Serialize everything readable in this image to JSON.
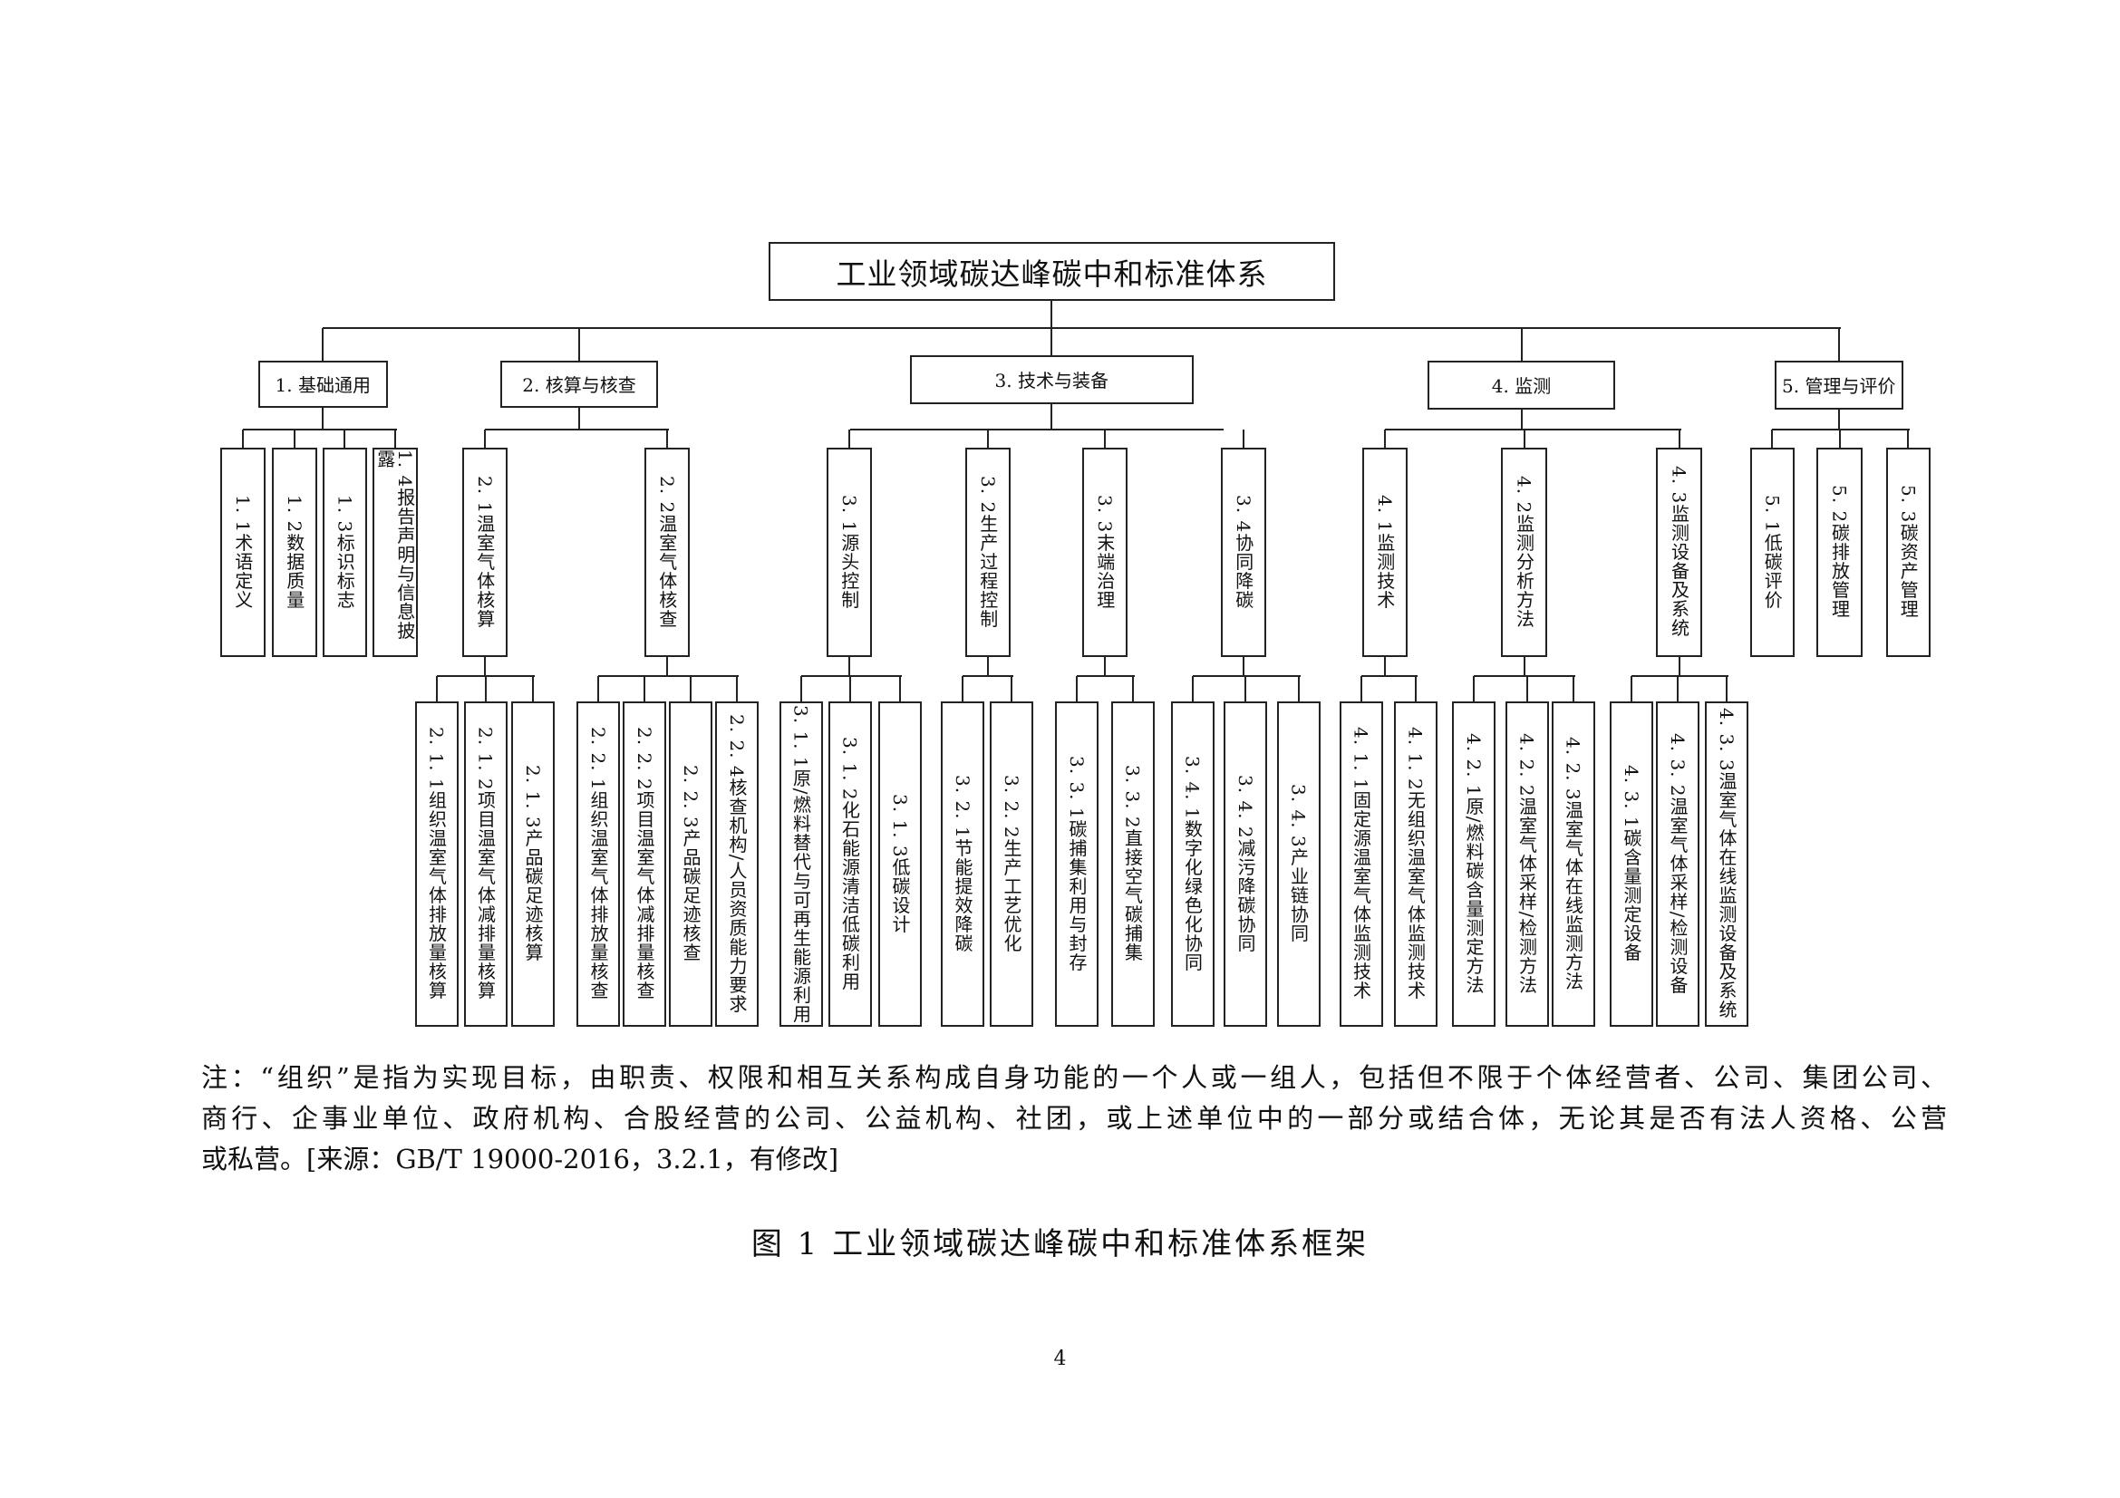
{
  "title": "工业领域碳达峰碳中和标准体系",
  "tree": [
    {
      "label": "1. 基础通用",
      "children": [
        {
          "label": "1. 1术语定义"
        },
        {
          "label": "1. 2数据质量"
        },
        {
          "label": "1. 3标识标志"
        },
        {
          "label": "1. 4报告声明与信息披露"
        }
      ]
    },
    {
      "label": "2. 核算与核查",
      "children": [
        {
          "label": "2. 1温室气体核算",
          "children": [
            {
              "label": "2. 1. 1组织温室气体排放量核算"
            },
            {
              "label": "2. 1. 2项目温室气体减排量核算"
            },
            {
              "label": "2. 1. 3产品碳足迹核算"
            }
          ]
        },
        {
          "label": "2. 2温室气体核查",
          "children": [
            {
              "label": "2. 2. 1组织温室气体排放量核查"
            },
            {
              "label": "2. 2. 2项目温室气体减排量核查"
            },
            {
              "label": "2. 2. 3产品碳足迹核查"
            },
            {
              "label": "2. 2. 4核查机构/人员资质能力要求"
            }
          ]
        }
      ]
    },
    {
      "label": "3. 技术与装备",
      "children": [
        {
          "label": "3. 1源头控制",
          "children": [
            {
              "label": "3. 1. 1原/燃料替代与可再生能源利用"
            },
            {
              "label": "3. 1. 2化石能源清洁低碳利用"
            },
            {
              "label": "3. 1. 3低碳设计"
            }
          ]
        },
        {
          "label": "3. 2生产过程控制",
          "children": [
            {
              "label": "3. 2. 1节能提效降碳"
            },
            {
              "label": "3. 2. 2生产工艺优化"
            }
          ]
        },
        {
          "label": "3. 3末端治理",
          "children": [
            {
              "label": "3. 3. 1碳捕集利用与封存"
            },
            {
              "label": "3. 3. 2直接空气碳捕集"
            }
          ]
        },
        {
          "label": "3. 4协同降碳",
          "children": [
            {
              "label": "3. 4. 1数字化绿色化协同"
            },
            {
              "label": "3. 4. 2减污降碳协同"
            },
            {
              "label": "3. 4. 3产业链协同"
            }
          ]
        }
      ]
    },
    {
      "label": "4. 监测",
      "children": [
        {
          "label": "4. 1监测技术",
          "children": [
            {
              "label": "4. 1. 1固定源温室气体监测技术"
            },
            {
              "label": "4. 1. 2无组织温室气体监测技术"
            }
          ]
        },
        {
          "label": "4. 2监测分析方法",
          "children": [
            {
              "label": "4. 2. 1原/燃料碳含量测定方法"
            },
            {
              "label": "4. 2. 2温室气体采样/检测方法"
            },
            {
              "label": "4. 2. 3温室气体在线监测方法"
            }
          ]
        },
        {
          "label": "4. 3监测设备及系统",
          "children": [
            {
              "label": "4. 3. 1碳含量测定设备"
            },
            {
              "label": "4. 3. 2温室气体采样/检测设备"
            },
            {
              "label": "4. 3. 3温室气体在线监测设备及系统"
            }
          ]
        }
      ]
    },
    {
      "label": "5. 管理与评价",
      "children": [
        {
          "label": "5. 1低碳评价"
        },
        {
          "label": "5. 2碳排放管理"
        },
        {
          "label": "5. 3碳资产管理"
        }
      ]
    }
  ],
  "note_lines": [
    "注：“组织”是指为实现目标，由职责、权限和相互关系构成自身功能的一个人或一组人，包括但不限于个体经营者、公司、集团公司、",
    "商行、企事业单位、政府机构、合股经营的公司、公益机构、社团，或上述单位中的一部分或结合体，无论其是否有法人资格、公营",
    "或私营。[来源：GB/T 19000-2016，3.2.1，有修改]"
  ],
  "caption": "图 1  工业领域碳达峰碳中和标准体系框架",
  "page_number": "4"
}
